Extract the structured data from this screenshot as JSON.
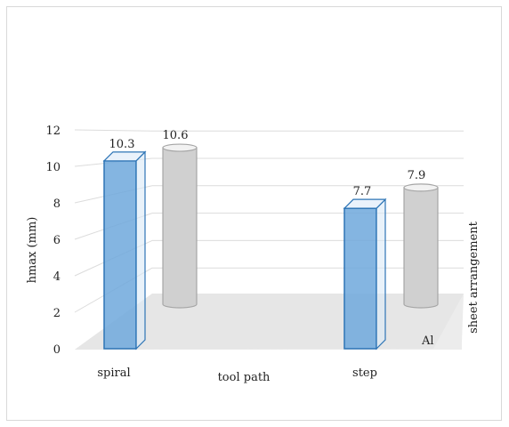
{
  "chart_data": {
    "type": "bar",
    "style": "3d-clustered",
    "categories": [
      "spiral",
      "step"
    ],
    "series": [
      {
        "name": "",
        "shape": "box",
        "color": "#6fa8dc",
        "values": [
          10.3,
          7.7
        ]
      },
      {
        "name": "Al",
        "shape": "cylinder",
        "color": "#c8c8c8",
        "values": [
          10.6,
          7.9
        ]
      }
    ],
    "data_labels": [
      "10.3",
      "7.7",
      "10.6",
      "7.9"
    ],
    "xlabel": "tool path",
    "ylabel": "hmax (mm)",
    "zlabel": "sheet arrangement",
    "z_tick_labels": [
      "Al"
    ],
    "y_ticks": [
      "0",
      "2",
      "4",
      "6",
      "8",
      "10",
      "12"
    ],
    "ylim": [
      0,
      12
    ],
    "grid": true
  }
}
